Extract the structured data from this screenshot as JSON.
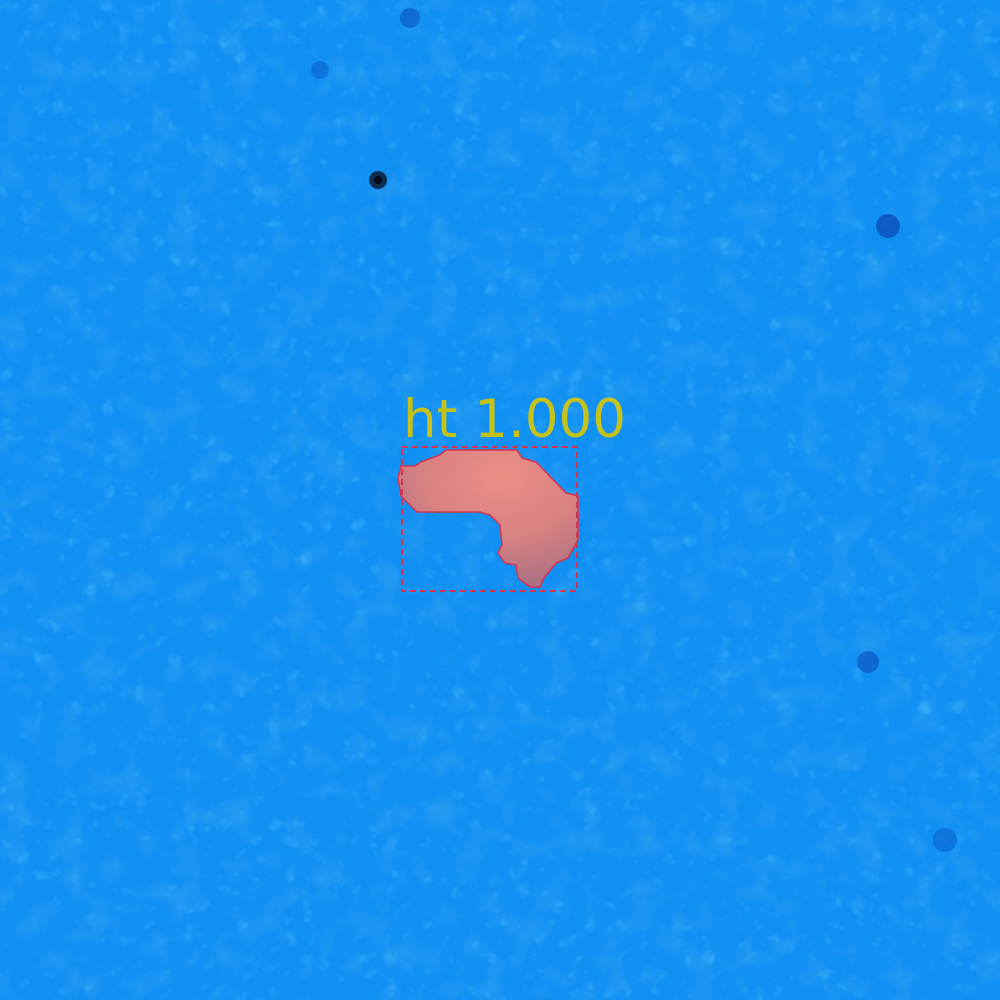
{
  "image": {
    "background_color": "#1190f4",
    "texture_dark_color": "#0b63d6",
    "texture_light_color": "#1aa6f7"
  },
  "detections": [
    {
      "class_label": "ht",
      "score": "1.000",
      "label_color": "#c6c21a",
      "box_color": "#d8324e",
      "mask_fill_color": "#e88078",
      "mask_highlight_color": "#ff8e7c",
      "mask_shadow_color": "#b86e7a"
    }
  ]
}
